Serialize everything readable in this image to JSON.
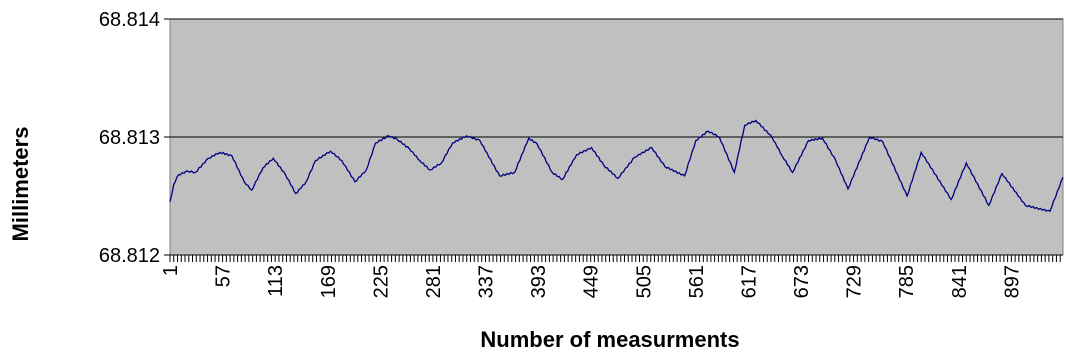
{
  "chart_data": {
    "type": "line",
    "xlabel": "Number of measurments",
    "ylabel": "Millimeters",
    "ylim": [
      68.812,
      68.814
    ],
    "xlim": [
      1,
      952
    ],
    "y_ticks": [
      "68.812",
      "68.813",
      "68.814"
    ],
    "x_ticks": [
      "1",
      "57",
      "113",
      "169",
      "225",
      "281",
      "337",
      "393",
      "449",
      "505",
      "561",
      "617",
      "673",
      "729",
      "785",
      "841",
      "897"
    ],
    "grid": "horizontal",
    "plot_background": "#c0c0c0",
    "line_color": "#000080",
    "series": [
      {
        "x": [
          1,
          5,
          10,
          20,
          28,
          42,
          54,
          67,
          80,
          88,
          100,
          111,
          124,
          135,
          146,
          156,
          172,
          184,
          198,
          210,
          220,
          234,
          243,
          256,
          267,
          278,
          290,
          302,
          317,
          331,
          352,
          368,
          383,
          392,
          408,
          419,
          434,
          450,
          463,
          478,
          496,
          514,
          528,
          549,
          561,
          574,
          586,
          602,
          613,
          625,
          642,
          653,
          664,
          681,
          696,
          710,
          723,
          746,
          760,
          786,
          801,
          833,
          849,
          873,
          887,
          912,
          938,
          952
        ],
        "values": [
          68.81245,
          68.8126,
          68.81268,
          68.81271,
          68.8127,
          68.81282,
          68.81287,
          68.81284,
          68.81262,
          68.81255,
          68.81274,
          68.81282,
          68.81268,
          68.81252,
          68.81262,
          68.8128,
          68.81288,
          68.8128,
          68.81262,
          68.81272,
          68.81295,
          68.81301,
          68.81298,
          68.8129,
          68.8128,
          68.81272,
          68.81278,
          68.81295,
          68.81301,
          68.81297,
          68.81267,
          68.8127,
          68.81299,
          68.81294,
          68.8127,
          68.81264,
          68.81285,
          68.81291,
          68.81276,
          68.81265,
          68.81283,
          68.81291,
          68.81275,
          68.81267,
          68.81297,
          68.81305,
          68.813,
          68.8127,
          68.8131,
          68.81314,
          68.813,
          68.81284,
          68.8127,
          68.81297,
          68.81299,
          68.8128,
          68.81256,
          68.813,
          68.81296,
          68.8125,
          68.81287,
          68.81247,
          68.81278,
          68.81242,
          68.81269,
          68.81242,
          68.81237,
          68.81266
        ]
      }
    ]
  }
}
